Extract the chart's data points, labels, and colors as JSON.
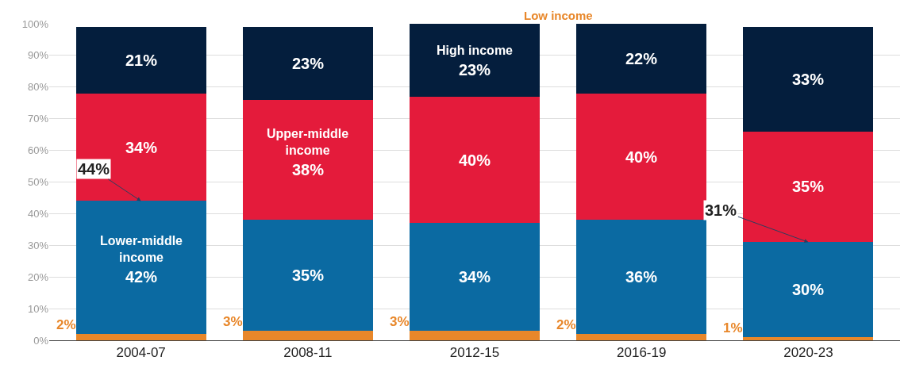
{
  "chart_data": {
    "type": "bar",
    "stacked": true,
    "categories": [
      "2004-07",
      "2008-11",
      "2012-15",
      "2016-19",
      "2020-23"
    ],
    "series": [
      {
        "name": "Low income",
        "color": "#e8872a",
        "values": [
          2,
          3,
          3,
          2,
          1
        ],
        "value_labels": [
          "2%",
          "3%",
          "3%",
          "2%",
          "1%"
        ]
      },
      {
        "name": "Lower-middle income",
        "color": "#0b6aa2",
        "values": [
          42,
          35,
          34,
          36,
          30
        ],
        "value_labels": [
          "42%",
          "35%",
          "34%",
          "36%",
          "30%"
        ]
      },
      {
        "name": "Upper-middle income",
        "color": "#e41b3b",
        "values": [
          34,
          38,
          40,
          40,
          35
        ],
        "value_labels": [
          "34%",
          "38%",
          "40%",
          "40%",
          "35%"
        ]
      },
      {
        "name": "High income",
        "color": "#041e3d",
        "values": [
          21,
          23,
          23,
          22,
          33
        ],
        "value_labels": [
          "21%",
          "23%",
          "23%",
          "22%",
          "33%"
        ]
      }
    ],
    "annotations": [
      {
        "text": "44%",
        "x": "2004-07",
        "y": 44
      },
      {
        "text": "31%",
        "x": "2020-23",
        "y": 31
      }
    ],
    "ylim": [
      0,
      100
    ],
    "yticks": [
      {
        "value": 0,
        "label": "0%"
      },
      {
        "value": 10,
        "label": "10%"
      },
      {
        "value": 20,
        "label": "20%"
      },
      {
        "value": 30,
        "label": "30%"
      },
      {
        "value": 40,
        "label": "40%"
      },
      {
        "value": 50,
        "label": "50%"
      },
      {
        "value": 60,
        "label": "60%"
      },
      {
        "value": 70,
        "label": "70%"
      },
      {
        "value": 80,
        "label": "80%"
      },
      {
        "value": 90,
        "label": "90%"
      },
      {
        "value": 100,
        "label": "100%"
      }
    ],
    "grid": "y",
    "legend": false
  }
}
